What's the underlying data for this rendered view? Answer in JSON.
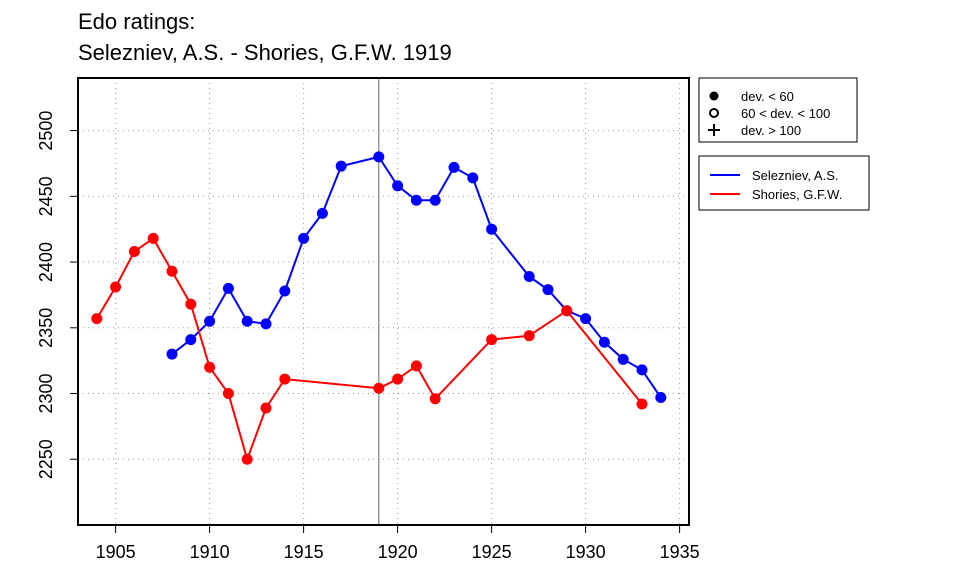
{
  "chart_data": {
    "type": "line",
    "title": "Edo ratings:",
    "subtitle": "Selezniev, A.S. - Shories, G.F.W. 1919",
    "xlabel": "",
    "ylabel": "",
    "xlim": [
      1903,
      1935.5
    ],
    "ylim": [
      2200,
      2540
    ],
    "x_ticks": [
      1905,
      1910,
      1915,
      1920,
      1925,
      1930,
      1935
    ],
    "y_ticks": [
      2250,
      2300,
      2350,
      2400,
      2450,
      2500
    ],
    "grid": true,
    "reference_line_x": 1919,
    "deviation_legend": {
      "position": "top-right",
      "entries": [
        {
          "symbol": "filled-circle",
          "label": "dev. < 60"
        },
        {
          "symbol": "open-circle",
          "label": "60 < dev. < 100"
        },
        {
          "symbol": "plus",
          "label": "dev. > 100"
        }
      ]
    },
    "series_legend_position": "right",
    "series": [
      {
        "name": "Selezniev, A.S.",
        "color": "#0000ff",
        "x": [
          1908,
          1909,
          1910,
          1911,
          1912,
          1913,
          1914,
          1915,
          1916,
          1917,
          1919,
          1920,
          1921,
          1922,
          1923,
          1924,
          1925,
          1927,
          1928,
          1929,
          1930,
          1931,
          1932,
          1933,
          1934
        ],
        "values": [
          2330,
          2341,
          2355,
          2380,
          2355,
          2353,
          2378,
          2418,
          2437,
          2473,
          2480,
          2458,
          2447,
          2447,
          2472,
          2464,
          2425,
          2389,
          2379,
          2363,
          2357,
          2339,
          2326,
          2318,
          2297
        ]
      },
      {
        "name": "Shories, G.F.W.",
        "color": "#ff0000",
        "x": [
          1904,
          1905,
          1906,
          1907,
          1908,
          1909,
          1910,
          1911,
          1912,
          1913,
          1914,
          1919,
          1920,
          1921,
          1922,
          1925,
          1927,
          1929,
          1933
        ],
        "values": [
          2357,
          2381,
          2408,
          2418,
          2393,
          2368,
          2320,
          2300,
          2250,
          2289,
          2311,
          2304,
          2311,
          2321,
          2296,
          2341,
          2344,
          2363,
          2292
        ]
      }
    ]
  }
}
